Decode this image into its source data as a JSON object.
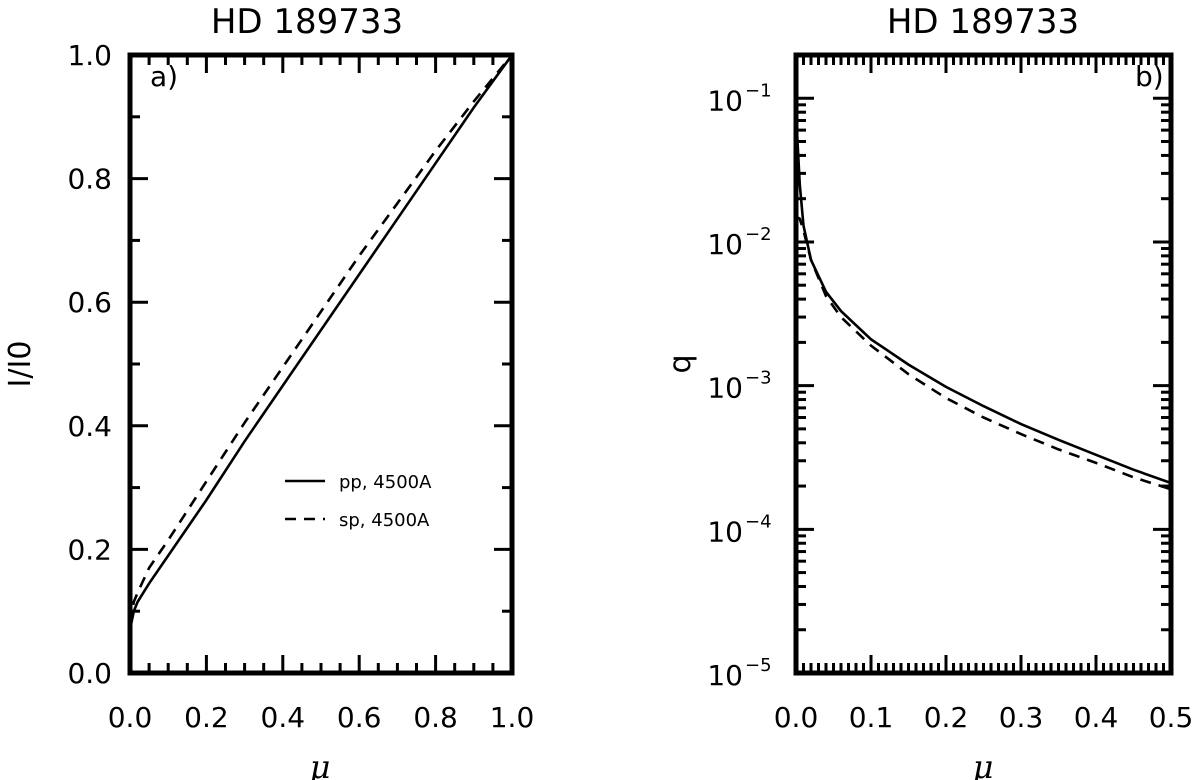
{
  "chart_data": [
    {
      "type": "line",
      "panel_tag": "a)",
      "title": "HD 189733",
      "xlabel": "μ",
      "ylabel": "I/I0",
      "xlim": [
        0.0,
        1.0
      ],
      "ylim": [
        0.0,
        1.0
      ],
      "yscale": "linear",
      "xticks": [
        "0.0",
        "0.2",
        "0.4",
        "0.6",
        "0.8",
        "1.0"
      ],
      "yticks": [
        "0.0",
        "0.2",
        "0.4",
        "0.6",
        "0.8",
        "1.0"
      ],
      "legend_position": "center-right",
      "series": [
        {
          "name": "pp, 4500A",
          "style": "solid",
          "x": [
            0.0,
            0.01,
            0.02,
            0.05,
            0.1,
            0.2,
            0.3,
            0.4,
            0.5,
            0.6,
            0.7,
            0.8,
            0.9,
            1.0
          ],
          "y": [
            0.07,
            0.1,
            0.115,
            0.145,
            0.19,
            0.28,
            0.375,
            0.465,
            0.555,
            0.645,
            0.735,
            0.825,
            0.915,
            1.0
          ]
        },
        {
          "name": "sp, 4500A",
          "style": "dashed",
          "x": [
            0.0,
            0.01,
            0.02,
            0.05,
            0.1,
            0.2,
            0.3,
            0.4,
            0.5,
            0.6,
            0.7,
            0.8,
            0.9,
            1.0
          ],
          "y": [
            0.08,
            0.115,
            0.13,
            0.17,
            0.215,
            0.31,
            0.405,
            0.495,
            0.585,
            0.675,
            0.76,
            0.845,
            0.925,
            1.0
          ]
        }
      ]
    },
    {
      "type": "line",
      "panel_tag": "b)",
      "title": "HD 189733",
      "xlabel": "μ",
      "ylabel": "q",
      "xlim": [
        0.0,
        0.5
      ],
      "ylim": [
        1e-05,
        0.2
      ],
      "yscale": "log",
      "xticks": [
        "0.0",
        "0.1",
        "0.2",
        "0.3",
        "0.4",
        "0.5"
      ],
      "yticks": [
        {
          "base": "10",
          "exp": "-1"
        },
        {
          "base": "10",
          "exp": "-2"
        },
        {
          "base": "10",
          "exp": "-3"
        },
        {
          "base": "10",
          "exp": "-4"
        },
        {
          "base": "10",
          "exp": "-5"
        }
      ],
      "series": [
        {
          "name": "pp, 4500A",
          "style": "solid",
          "x": [
            0.0,
            0.002,
            0.005,
            0.01,
            0.02,
            0.04,
            0.06,
            0.1,
            0.15,
            0.2,
            0.25,
            0.3,
            0.35,
            0.4,
            0.45,
            0.5
          ],
          "y": [
            0.09,
            0.05,
            0.025,
            0.013,
            0.0075,
            0.0045,
            0.0033,
            0.0021,
            0.0014,
            0.00098,
            0.00072,
            0.00054,
            0.00042,
            0.00033,
            0.00026,
            0.00021
          ]
        },
        {
          "name": "sp, 4500A",
          "style": "dashed",
          "x": [
            0.0,
            0.005,
            0.01,
            0.02,
            0.04,
            0.06,
            0.1,
            0.15,
            0.2,
            0.25,
            0.3,
            0.35,
            0.4,
            0.45,
            0.5
          ],
          "y": [
            0.015,
            0.0145,
            0.012,
            0.0075,
            0.0042,
            0.003,
            0.0019,
            0.0012,
            0.00082,
            0.0006,
            0.00046,
            0.00036,
            0.00029,
            0.00023,
            0.00019
          ]
        }
      ]
    }
  ]
}
